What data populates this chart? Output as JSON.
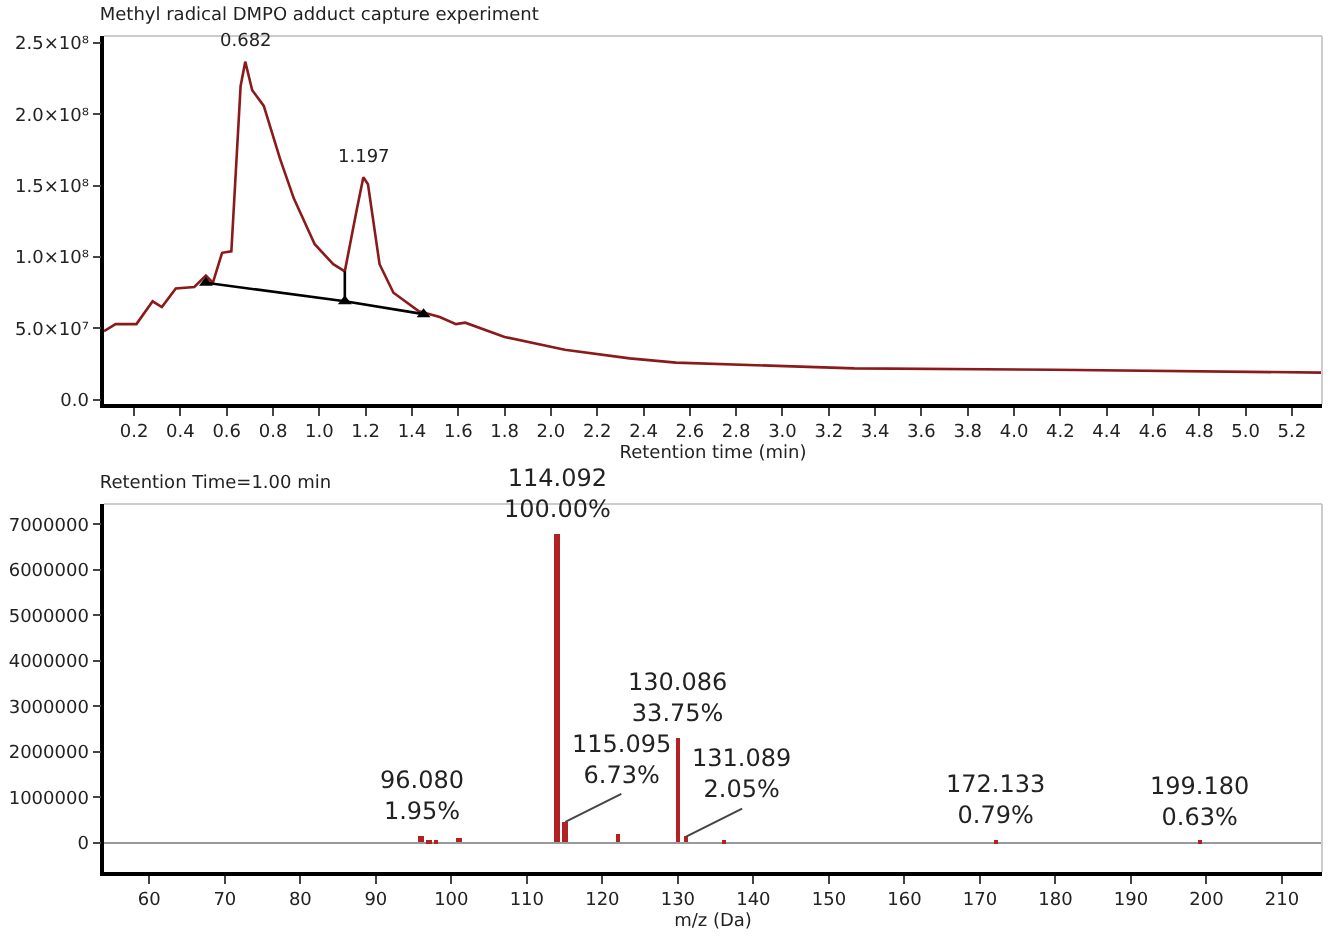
{
  "chart_data": [
    {
      "type": "line",
      "title": "Methyl radical DMPO adduct capture experiment",
      "xlabel": "Retention time (min)",
      "xlim": [
        0.07,
        5.33
      ],
      "ylim": [
        -3000000,
        255000000
      ],
      "xticks": [
        0.2,
        0.4,
        0.6,
        0.8,
        {
          "value": 1,
          "label": "1.0"
        },
        1.2,
        1.4,
        1.6,
        1.8,
        {
          "value": 2,
          "label": "2.0"
        },
        2.2,
        2.4,
        2.6,
        2.8,
        {
          "value": 3,
          "label": "3.0"
        },
        3.2,
        3.4,
        3.6,
        3.8,
        {
          "value": 4,
          "label": "4.0"
        },
        4.2,
        4.4,
        4.6,
        4.8,
        {
          "value": 5,
          "label": "5.0"
        },
        5.2
      ],
      "yticks": [
        {
          "value": 0,
          "label": "0.0"
        },
        {
          "value": 50000000,
          "label": "5.0×10⁷"
        },
        {
          "value": 100000000,
          "label": "1.0×10⁸"
        },
        {
          "value": 150000000,
          "label": "1.5×10⁸"
        },
        {
          "value": 200000000,
          "label": "2.0×10⁸"
        },
        {
          "value": 250000000,
          "label": "2.5×10⁸"
        }
      ],
      "grid": false,
      "series": [
        {
          "color": "#8b1a1a",
          "marker": "none",
          "x": [
            0.07,
            0.12,
            0.21,
            0.28,
            0.32,
            0.38,
            0.46,
            0.51,
            0.54,
            0.58,
            0.62,
            0.66,
            0.68,
            0.71,
            0.76,
            0.83,
            0.89,
            0.98,
            1.06,
            1.11,
            1.16,
            1.19,
            1.21,
            1.26,
            1.32,
            1.43,
            1.52,
            1.59,
            1.63,
            1.8,
            2.06,
            2.34,
            2.54,
            3.31,
            4.17,
            5.33
          ],
          "values": [
            48000000,
            53000000,
            53000000,
            69000000,
            65000000,
            78000000,
            79000000,
            87000000,
            82000000,
            103000000,
            104000000,
            220000000,
            237000000,
            217000000,
            206000000,
            169000000,
            141000000,
            109000000,
            95000000,
            90000000,
            132000000,
            156000000,
            151000000,
            95000000,
            75000000,
            62000000,
            58000000,
            53000000,
            54000000,
            44000000,
            35000000,
            29000000,
            26000000,
            22000000,
            21000000,
            19000000
          ]
        },
        {
          "color": "#000000",
          "marker": "triangle",
          "x": [
            0.51,
            1.11,
            1.45
          ],
          "values": [
            82000000,
            69000000,
            60000000
          ]
        },
        {
          "color": "#000000",
          "marker": "none",
          "x": [
            1.11,
            1.11
          ],
          "values": [
            90000000,
            70000000
          ]
        }
      ],
      "annotations": [
        {
          "text": "0.682",
          "x": 0.682,
          "y": 237000000
        },
        {
          "text": "1.197",
          "x": 1.197,
          "y": 156000000
        }
      ]
    },
    {
      "type": "bar",
      "title": "Retention Time=1.00 min",
      "xlabel": "m/z (Da)",
      "xlim": [
        54,
        215.3
      ],
      "ylim": [
        -640000,
        7450000
      ],
      "xticks": [
        60,
        70,
        80,
        90,
        100,
        110,
        120,
        130,
        140,
        150,
        160,
        170,
        180,
        190,
        200,
        210
      ],
      "yticks": [
        0,
        1000000,
        2000000,
        3000000,
        4000000,
        5000000,
        6000000,
        7000000
      ],
      "grid": false,
      "color": "#b22222",
      "x": [
        96.08,
        97.1,
        98.1,
        101.1,
        114.092,
        115.095,
        122.1,
        130.086,
        131.089,
        136.1,
        172.133,
        199.18
      ],
      "values": [
        130000,
        50000,
        60000,
        110000,
        6800000,
        460000,
        200000,
        2300000,
        140000,
        50000,
        50000,
        40000
      ],
      "ref_lines": [
        {
          "axis": "y",
          "value": 0,
          "color": "#999999"
        }
      ],
      "annotations": [
        {
          "text": "96.080\n1.95%",
          "x": 96.08,
          "y": 130000
        },
        {
          "text": "114.092\n100.00%",
          "x": 114.092,
          "y": 6800000
        },
        {
          "text": "115.095\n6.73%",
          "x": 115.095,
          "y": 460000
        },
        {
          "text": "130.086\n33.75%",
          "x": 130.086,
          "y": 2300000
        },
        {
          "text": "131.089\n2.05%",
          "x": 131.089,
          "y": 140000
        },
        {
          "text": "172.133\n0.79%",
          "x": 172.133,
          "y": 50000
        },
        {
          "text": "199.180\n0.63%",
          "x": 199.18,
          "y": 40000
        }
      ]
    }
  ]
}
